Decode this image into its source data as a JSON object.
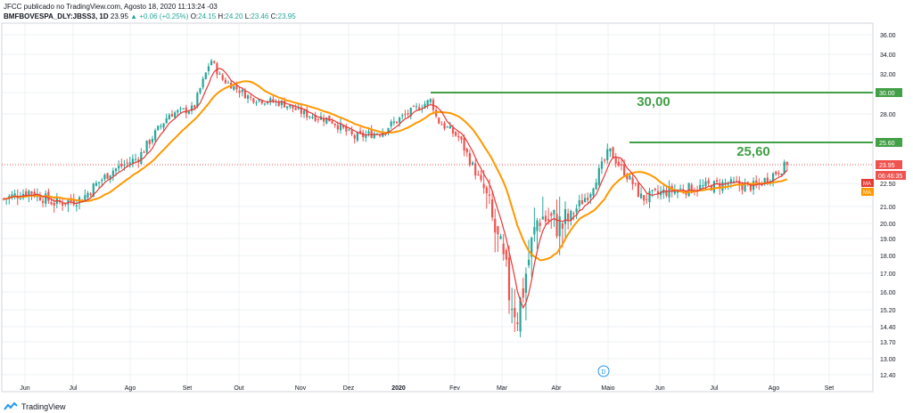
{
  "header": {
    "published": "JFCC publicado no TradingView.com, Agosto 18, 2020 11:13:24 -03",
    "symbol": "BMFBOVESPA_DLY:JBSS3, 1D",
    "price": "23.95",
    "change": "▲ +0.06 (+0.25%)",
    "ohlc": {
      "o_label": "O:",
      "o": "24.15",
      "h_label": "H:",
      "h": "24.20",
      "l_label": "L:",
      "l": "23.46",
      "c_label": "C:",
      "c": "23.95"
    }
  },
  "footer": {
    "brand": "TradingView"
  },
  "colors": {
    "up": "#26a69a",
    "down": "#ef5350",
    "ma_fast": "#e53935",
    "ma_slow": "#ff9800",
    "level": "#43a047",
    "grid": "#eef0f3",
    "axis_text": "#131722"
  },
  "chart_data": {
    "type": "candlestick",
    "symbol": "JBSS3",
    "interval": "1D",
    "ylim": [
      12.0,
      37.0
    ],
    "y_ticks": [
      "12.40",
      "13.00",
      "13.70",
      "14.40",
      "15.20",
      "16.00",
      "17.00",
      "18.00",
      "19.00",
      "20.00",
      "21.00",
      "22.50",
      "28.00",
      "30.00",
      "32.00",
      "34.00",
      "36.00"
    ],
    "x_ticks": [
      "Jun",
      "Jul",
      "Ago",
      "Set",
      "Out",
      "Nov",
      "Dez",
      "2020",
      "Fev",
      "Mar",
      "Abr",
      "Maio",
      "Jun",
      "Jul",
      "Ago",
      "Set"
    ],
    "last_price": {
      "value": 23.95,
      "label": "23.95",
      "countdown": "06:46:35"
    },
    "ma_labels": [
      "MA",
      "MA"
    ],
    "levels": [
      {
        "value": 30.0,
        "axis_label": "30.00",
        "text": "30,00",
        "from_month": "2020-jan"
      },
      {
        "value": 25.6,
        "axis_label": "25.60",
        "text": "25,60",
        "from_month": "2020-mai"
      }
    ],
    "close_by_period": [
      [
        "2019-jun-01",
        21.5
      ],
      [
        "2019-jun-15",
        22.0
      ],
      [
        "2019-jul-01",
        21.2
      ],
      [
        "2019-jul-15",
        21.5
      ],
      [
        "2019-ago-01",
        23.5
      ],
      [
        "2019-ago-15",
        24.5
      ],
      [
        "2019-set-01",
        28.0
      ],
      [
        "2019-set-15",
        28.5
      ],
      [
        "2019-set-25",
        33.5
      ],
      [
        "2019-out-01",
        31.5
      ],
      [
        "2019-out-15",
        29.5
      ],
      [
        "2019-nov-01",
        29.0
      ],
      [
        "2019-nov-15",
        28.0
      ],
      [
        "2019-dez-01",
        27.5
      ],
      [
        "2019-dez-15",
        26.0
      ],
      [
        "2020-jan-01",
        26.5
      ],
      [
        "2020-jan-15",
        28.0
      ],
      [
        "2020-jan-28",
        29.3
      ],
      [
        "2020-fev-01",
        27.5
      ],
      [
        "2020-fev-15",
        26.0
      ],
      [
        "2020-mar-01",
        22.0
      ],
      [
        "2020-mar-15",
        16.0
      ],
      [
        "2020-mar-20",
        15.0
      ],
      [
        "2020-abr-01",
        20.5
      ],
      [
        "2020-abr-15",
        19.8
      ],
      [
        "2020-mai-01",
        22.0
      ],
      [
        "2020-mai-12",
        25.0
      ],
      [
        "2020-jun-01",
        21.5
      ],
      [
        "2020-jun-15",
        22.0
      ],
      [
        "2020-jul-01",
        22.2
      ],
      [
        "2020-jul-15",
        22.5
      ],
      [
        "2020-ago-01",
        22.3
      ],
      [
        "2020-ago-18",
        23.95
      ]
    ]
  }
}
